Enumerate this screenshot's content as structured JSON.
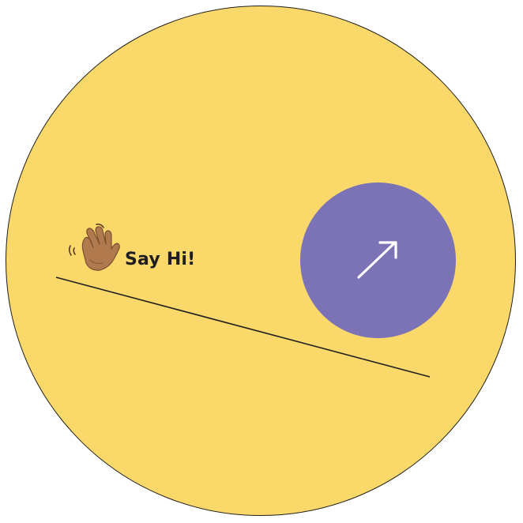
{
  "greeting": {
    "emoji": "waving-hand-icon",
    "label": "Say Hi!"
  },
  "action_button": {
    "icon": "arrow-up-right-icon"
  },
  "colors": {
    "circle_fill": "#fad86a",
    "circle_stroke": "#1f1f1f",
    "button_fill": "#7b73b5",
    "arrow": "#ffffff",
    "text": "#1e1e1e"
  }
}
